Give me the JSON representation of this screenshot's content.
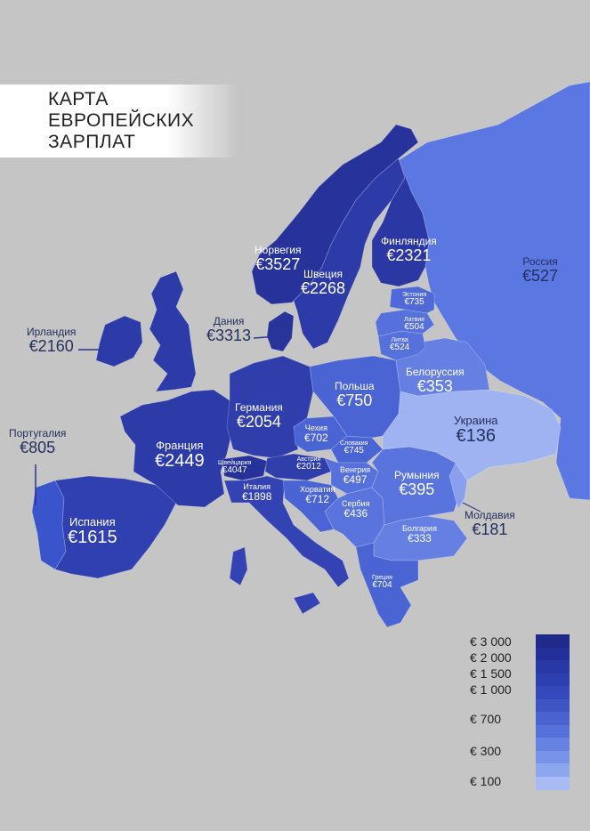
{
  "title": {
    "line1": "КАРТА",
    "line2": "ЕВРОПЕЙСКИХ",
    "line3": "ЗАРПЛАТ"
  },
  "colors": {
    "background": "#c5c5c5",
    "sea_label": "#c5c5c5"
  },
  "countries": [
    {
      "id": "norway",
      "name": "Норвегия",
      "value": "€3527",
      "color": "#27339a"
    },
    {
      "id": "sweden",
      "name": "Швеция",
      "value": "€2268",
      "color": "#2d3ba8"
    },
    {
      "id": "finland",
      "name": "Финляндия",
      "value": "€2321",
      "color": "#2b38a4"
    },
    {
      "id": "denmark",
      "name": "Дания",
      "value": "€3313",
      "color": "#283499"
    },
    {
      "id": "ireland",
      "name": "Ирландия",
      "value": "€2160",
      "color": "#2d3ba8"
    },
    {
      "id": "uk",
      "name": "",
      "value": "",
      "color": "#2d3ba8"
    },
    {
      "id": "portugal",
      "name": "Португалия",
      "value": "€805",
      "color": "#3a55cc"
    },
    {
      "id": "spain",
      "name": "Испания",
      "value": "€1615",
      "color": "#3040b0"
    },
    {
      "id": "france",
      "name": "Франция",
      "value": "€2449",
      "color": "#2d3ba8"
    },
    {
      "id": "germany",
      "name": "Германия",
      "value": "€2054",
      "color": "#2f3eab"
    },
    {
      "id": "switzerland",
      "name": "Швейцария",
      "value": "€4047",
      "color": "#26319a"
    },
    {
      "id": "italy",
      "name": "Италия",
      "value": "€1898",
      "color": "#3443b4"
    },
    {
      "id": "austria",
      "name": "Австрия",
      "value": "€2012",
      "color": "#2f3eab"
    },
    {
      "id": "czech",
      "name": "Чехия",
      "value": "€702",
      "color": "#4a64d4"
    },
    {
      "id": "slovakia",
      "name": "Словакия",
      "value": "€745",
      "color": "#4a64d4"
    },
    {
      "id": "hungary",
      "name": "Венгрия",
      "value": "€497",
      "color": "#5670dc"
    },
    {
      "id": "croatia",
      "name": "Хорватия",
      "value": "€712",
      "color": "#4a64d4"
    },
    {
      "id": "serbia",
      "name": "Сербия",
      "value": "€436",
      "color": "#5a74de"
    },
    {
      "id": "romania",
      "name": "Румыния",
      "value": "€395",
      "color": "#5a74de"
    },
    {
      "id": "bulgaria",
      "name": "Болгария",
      "value": "€333",
      "color": "#6580e2"
    },
    {
      "id": "greece",
      "name": "Греция",
      "value": "€704",
      "color": "#4a64d4"
    },
    {
      "id": "poland",
      "name": "Польша",
      "value": "€750",
      "color": "#4a64d4"
    },
    {
      "id": "estonia",
      "name": "Эстония",
      "value": "€735",
      "color": "#4f69d6"
    },
    {
      "id": "latvia",
      "name": "Латвия",
      "value": "€504",
      "color": "#5670dc"
    },
    {
      "id": "lithuania",
      "name": "Литва",
      "value": "€524",
      "color": "#5670dc"
    },
    {
      "id": "belarus",
      "name": "Белоруссия",
      "value": "€353",
      "color": "#6580e2"
    },
    {
      "id": "ukraine",
      "name": "Украина",
      "value": "€136",
      "color": "#9fb3f2"
    },
    {
      "id": "moldova",
      "name": "Молдавия",
      "value": "€181",
      "color": "#8aa0ee"
    },
    {
      "id": "russia",
      "name": "Россия",
      "value": "€527",
      "color": "#5b78e2"
    }
  ],
  "legend": {
    "labels": [
      "€ 3 000",
      "€ 2 000",
      "€ 1 500",
      "€ 1 000",
      "€   700",
      "€   300",
      "€   100"
    ],
    "swatches": [
      "#1f2a8a",
      "#24309a",
      "#2838a6",
      "#2d40b0",
      "#3549bc",
      "#3f55c4",
      "#4a63d0",
      "#5771da",
      "#6683e2",
      "#7894e8",
      "#8ea6ee",
      "#a8bbf4"
    ]
  }
}
